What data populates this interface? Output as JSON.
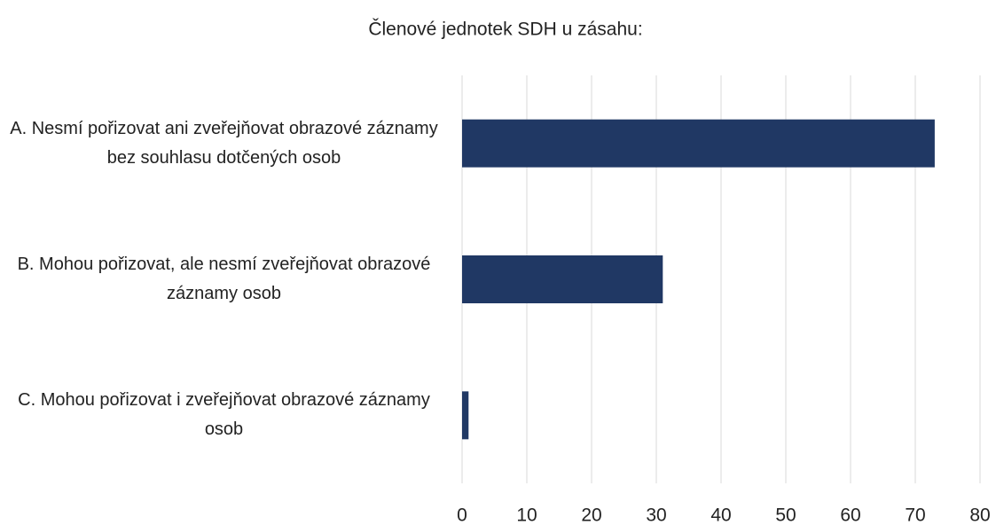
{
  "chart_data": {
    "type": "bar",
    "orientation": "horizontal",
    "title": "Členové jednotek SDH u zásahu:",
    "categories": [
      "A. Nesmí pořizovat ani zveřejňovat obrazové záznamy bez souhlasu dotčených osob",
      "B. Mohou pořizovat, ale nesmí zveřejňovat obrazové záznamy osob",
      "C. Mohou pořizovat i zveřejňovat obrazové záznamy osob"
    ],
    "values": [
      73,
      31,
      1
    ],
    "color": "#203864",
    "xlim": [
      0,
      80
    ],
    "xticks": [
      0,
      10,
      20,
      30,
      40,
      50,
      60,
      70,
      80
    ],
    "grid": true
  }
}
